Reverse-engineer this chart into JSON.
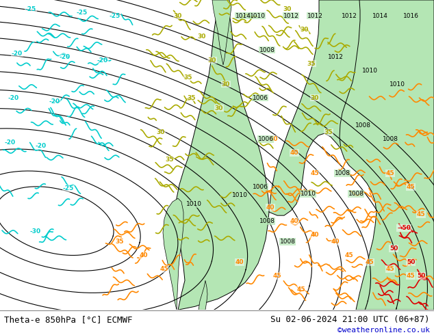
{
  "title_left": "Theta-e 850hPa [°C] ECMWF",
  "title_right": "Su 02-06-2024 21:00 UTC (06+87)",
  "credit": "©weatheronline.co.uk",
  "fig_width": 6.34,
  "fig_height": 4.9,
  "dpi": 100,
  "sea_color": "#d8d8d8",
  "land_color": "#b4e6b4",
  "bottom_bar_color": "#ffffff",
  "bottom_text_color": "#000000",
  "credit_color": "#0000cc",
  "isobar_color": "#000000",
  "theta_cyan_color": "#00cccc",
  "theta_yellow_color": "#aaaa00",
  "theta_orange_color": "#ff8800",
  "theta_red_color": "#dd0000",
  "label_font_size": 9,
  "credit_font_size": 8
}
